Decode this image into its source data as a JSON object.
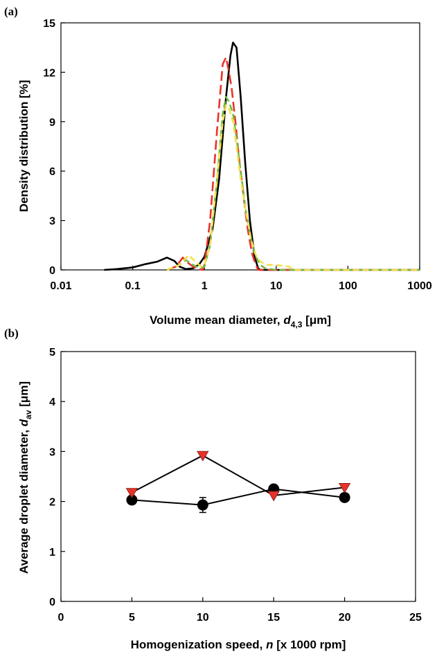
{
  "chart_data": [
    {
      "panel_label": "(a)",
      "type": "line",
      "xscale": "log",
      "xlim": [
        0.01,
        1000
      ],
      "ylim": [
        0,
        15
      ],
      "grid": false,
      "xticks": [
        0.01,
        0.1,
        1,
        10,
        100,
        1000
      ],
      "xtick_labels": [
        "0.01",
        "0.1",
        "1",
        "10",
        "100",
        "1000"
      ],
      "yticks": [
        0,
        3,
        6,
        9,
        12,
        15
      ],
      "ytick_labels": [
        "0",
        "3",
        "6",
        "9",
        "12",
        "15"
      ],
      "ylabel": "Density distribution  [%]",
      "xlabel": {
        "pre": "Volume mean diameter, ",
        "sym": "d",
        "sub": "4,3",
        "post": " [μm]"
      },
      "series": [
        {
          "color": "#000000",
          "dash": "solid",
          "x": [
            0.04,
            0.06,
            0.1,
            0.15,
            0.22,
            0.3,
            0.38,
            0.45,
            0.55,
            0.7,
            0.85,
            1.0,
            1.3,
            1.6,
            2.0,
            2.3,
            2.5,
            2.8,
            3.2,
            3.7,
            4.3,
            5.0,
            5.6,
            6.0,
            1000
          ],
          "y": [
            0,
            0.05,
            0.15,
            0.35,
            0.5,
            0.75,
            0.55,
            0.2,
            0.05,
            0.1,
            0.35,
            0.8,
            2.5,
            5.5,
            10.5,
            13.0,
            13.8,
            13.5,
            10.5,
            6.5,
            3.0,
            0.8,
            0.1,
            0,
            0
          ]
        },
        {
          "color": "#e8332a",
          "dash": "long-dash",
          "x": [
            0.3,
            0.4,
            0.5,
            0.6,
            0.75,
            0.95,
            1.0,
            1.2,
            1.5,
            1.8,
            2.0,
            2.2,
            2.4,
            2.7,
            3.0,
            3.5,
            4.0,
            4.6,
            5.2,
            5.6,
            1000
          ],
          "y": [
            0,
            0.2,
            0.75,
            0.4,
            0.1,
            0,
            0.3,
            3.0,
            8.5,
            12.5,
            12.9,
            12.0,
            11.0,
            9.0,
            7.0,
            4.5,
            2.5,
            1.0,
            0.3,
            0,
            0
          ]
        },
        {
          "color": "#74b944",
          "dash": "dash",
          "x": [
            0.3,
            0.45,
            0.55,
            0.7,
            0.85,
            1.0,
            1.2,
            1.5,
            1.8,
            2.0,
            2.2,
            2.5,
            2.8,
            3.2,
            3.8,
            4.5,
            5.2,
            6.0,
            7.0,
            10,
            1000
          ],
          "y": [
            0,
            0.3,
            0.6,
            0.3,
            0.1,
            0.2,
            1.5,
            5.5,
            9.5,
            10.5,
            10.2,
            9.5,
            8.0,
            6.0,
            3.5,
            1.8,
            0.8,
            0.3,
            0.1,
            0,
            0
          ]
        },
        {
          "color": "#f3e04b",
          "dash": "dash",
          "x": [
            0.3,
            0.45,
            0.6,
            0.75,
            0.9,
            1.0,
            1.2,
            1.5,
            1.8,
            2.0,
            2.2,
            2.5,
            2.8,
            3.2,
            3.8,
            4.5,
            5.2,
            6.0,
            7.5,
            10,
            15,
            18,
            1000
          ],
          "y": [
            0,
            0.3,
            0.9,
            0.5,
            0.2,
            0.3,
            1.5,
            5.5,
            9.0,
            10.0,
            9.8,
            9.0,
            7.5,
            5.5,
            3.5,
            1.8,
            0.9,
            0.5,
            0.3,
            0.3,
            0.2,
            0,
            0
          ]
        }
      ]
    },
    {
      "panel_label": "(b)",
      "type": "scatter",
      "xlim": [
        0,
        25
      ],
      "ylim": [
        0,
        5
      ],
      "grid": false,
      "xticks": [
        0,
        5,
        10,
        15,
        20,
        25
      ],
      "xtick_labels": [
        "0",
        "5",
        "10",
        "15",
        "20",
        "25"
      ],
      "yticks": [
        0,
        1,
        2,
        3,
        4,
        5
      ],
      "ytick_labels": [
        "0",
        "1",
        "2",
        "3",
        "4",
        "5"
      ],
      "ylabel": {
        "pre": "Average droplet diameter, ",
        "sym": "d",
        "sub": "av",
        "post": "  [μm]"
      },
      "xlabel": {
        "pre": "Homogenization speed, ",
        "sym": "n",
        "post": " [x 1000 rpm]"
      },
      "series": [
        {
          "marker": "circle",
          "color": "#000000",
          "x": [
            5,
            10,
            15,
            20
          ],
          "y": [
            2.03,
            1.93,
            2.25,
            2.08
          ],
          "yerr": [
            0.04,
            0.15,
            0.08,
            0.04
          ]
        },
        {
          "marker": "triangle-down",
          "color": "#e8332a",
          "x": [
            5,
            10,
            15,
            20
          ],
          "y": [
            2.18,
            2.92,
            2.12,
            2.28
          ],
          "yerr": [
            0,
            0,
            0,
            0
          ]
        }
      ]
    }
  ]
}
